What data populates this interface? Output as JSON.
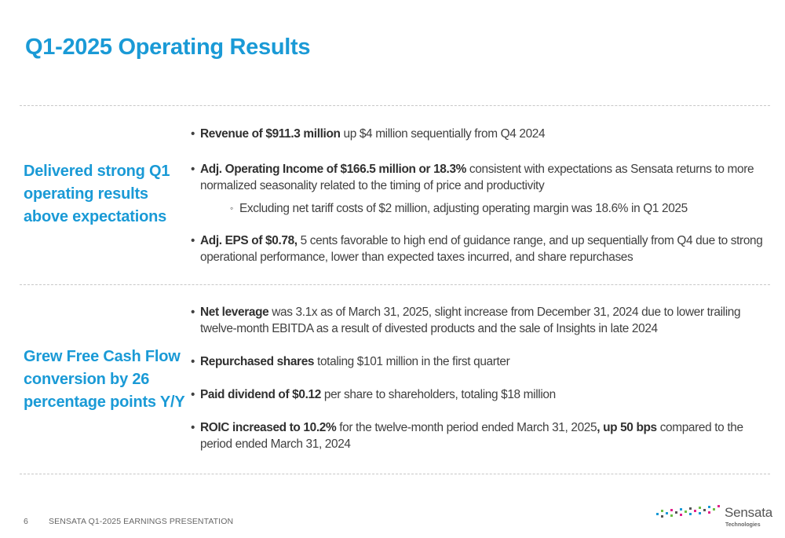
{
  "title": "Q1-2025 Operating Results",
  "sections": [
    {
      "heading": "Delivered strong Q1 operating results above expectations",
      "bullets": [
        {
          "bold": "Revenue of $911.3 million",
          "text": " up $4 million sequentially from Q4 2024"
        },
        {
          "bold": "Adj. Operating Income of $166.5 million or 18.3%",
          "text": " consistent with expectations as Sensata returns to more normalized seasonality related to the timing of price and productivity"
        },
        {
          "sub": "Excluding net tariff costs of $2 million, adjusting operating margin was 18.6% in Q1 2025"
        },
        {
          "bold": "Adj. EPS of $0.78,",
          "text": " 5 cents favorable to high end of guidance range, and up sequentially from Q4 due to strong operational performance, lower than expected taxes incurred, and share repurchases"
        }
      ]
    },
    {
      "heading": "Grew Free Cash Flow conversion by 26 percentage points Y/Y",
      "bullets": [
        {
          "bold": "Net leverage",
          "text": " was 3.1x as of March 31, 2025, slight increase from December 31, 2024 due to lower trailing twelve-month EBITDA as a result of divested products and the sale of Insights in late 2024"
        },
        {
          "bold": "Repurchased shares",
          "text": " totaling $101 million in the first quarter"
        },
        {
          "bold": "Paid dividend of $0.12",
          "text": " per share to shareholders, totaling $18 million"
        },
        {
          "bold": "ROIC increased to 10.2%",
          "text": " for the twelve-month period ended March 31, 2025",
          "bold2": ", up 50 bps",
          "text2": " compared to the period ended March 31, 2024"
        }
      ]
    }
  ],
  "footer": {
    "page_number": "6",
    "text": "SENSATA  Q1-2025 EARNINGS PRESENTATION"
  },
  "logo": {
    "name": "Sensata",
    "sub": "Technologies",
    "colors": [
      "#1a9ad6",
      "#6dbe45",
      "#e0218a",
      "#555555"
    ]
  }
}
